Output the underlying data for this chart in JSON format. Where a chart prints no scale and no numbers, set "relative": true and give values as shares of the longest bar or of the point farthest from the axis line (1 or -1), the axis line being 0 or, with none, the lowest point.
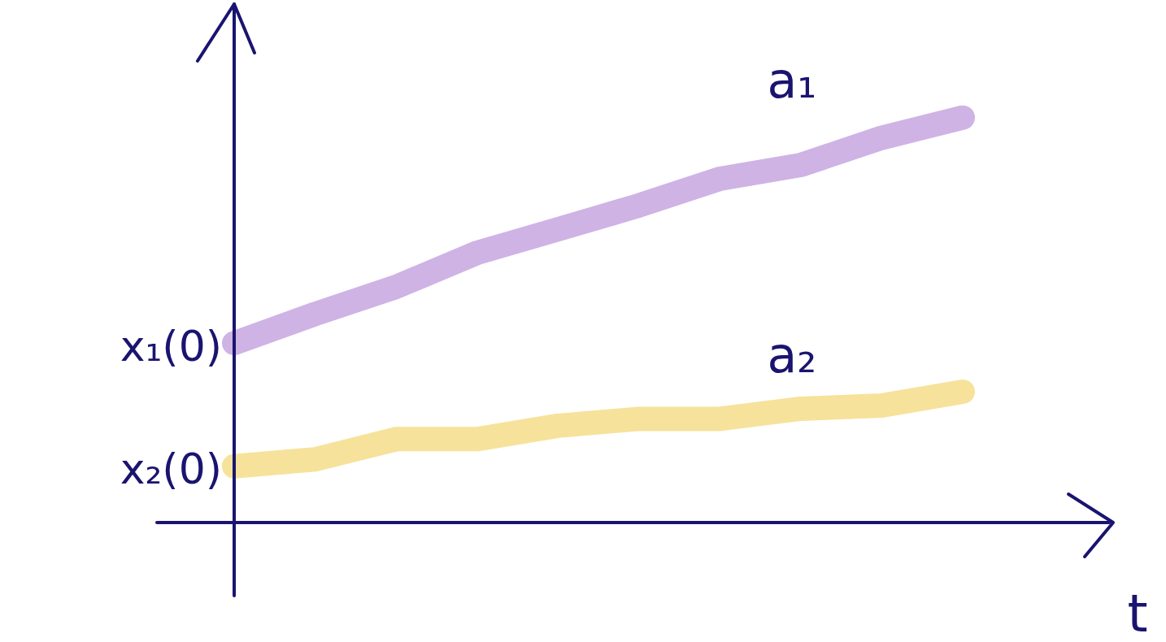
{
  "chart_data": {
    "type": "line",
    "relative": true,
    "xlabel": "t",
    "categories": [
      null,
      null,
      null,
      null,
      null,
      null,
      null,
      null,
      null,
      null
    ],
    "series": [
      {
        "name": "a₁",
        "color": "#cfb3e5",
        "values": [
          0.443,
          0.515,
          0.582,
          0.666,
          0.724,
          0.783,
          0.849,
          0.883,
          0.95,
          1
        ]
      },
      {
        "name": "a₂",
        "color": "#f6e29a",
        "values": [
          0.139,
          0.156,
          0.206,
          0.206,
          0.239,
          0.256,
          0.256,
          0.281,
          0.289,
          0.323
        ]
      }
    ],
    "annotations": [
      "x₁(0)",
      "x₂(0)"
    ],
    "grid": false,
    "legend": false,
    "marker": "none",
    "line_style": "solid"
  }
}
